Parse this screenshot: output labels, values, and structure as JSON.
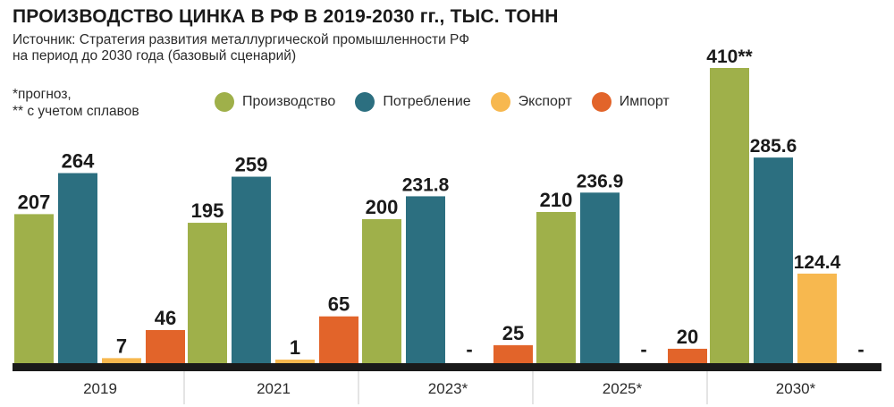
{
  "chart_data": {
    "type": "bar",
    "title": "ПРОИЗВОДСТВО ЦИНКА В РФ В 2019-2030 гг., ТЫС. ТОНН",
    "subtitle_lines": [
      "Источник: Стратегия развития металлургической промышленности РФ",
      "на период до 2030 года (базовый сценарий)"
    ],
    "footnote_lines": [
      "*прогноз,",
      "** с учетом сплавов"
    ],
    "categories": [
      "2019",
      "2021",
      "2023*",
      "2025*",
      "2030*"
    ],
    "series": [
      {
        "name": "Производство",
        "color": "#9fb04a",
        "values": [
          207,
          195,
          200,
          210,
          410
        ],
        "labels": [
          "207",
          "195",
          "200",
          "210",
          "410**"
        ]
      },
      {
        "name": "Потребление",
        "color": "#2c6f80",
        "values": [
          264,
          259,
          231.8,
          236.9,
          285.6
        ],
        "labels": [
          "264",
          "259",
          "231.8",
          "236.9",
          "285.6"
        ]
      },
      {
        "name": "Экспорт",
        "color": "#f7b84f",
        "values": [
          7,
          1,
          null,
          null,
          124.4
        ],
        "labels": [
          "7",
          "1",
          "-",
          "-",
          "124.4"
        ]
      },
      {
        "name": "Импорт",
        "color": "#e2642a",
        "values": [
          46,
          65,
          25,
          20,
          null
        ],
        "labels": [
          "46",
          "65",
          "25",
          "20",
          "-"
        ]
      }
    ],
    "ylim": [
      0,
      410
    ],
    "xlabel": "",
    "ylabel": "",
    "grid": false,
    "legend": "top"
  }
}
